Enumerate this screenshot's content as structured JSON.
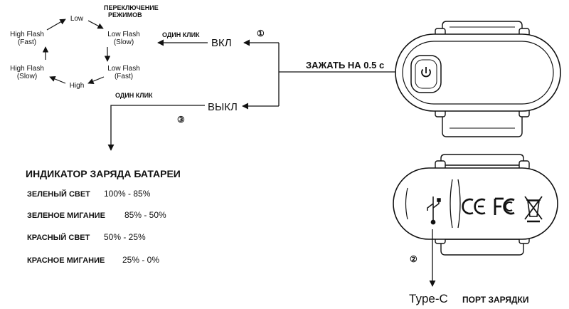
{
  "modes": {
    "title_line1": "ПЕРЕКЛЮЧЕНИЕ",
    "title_line2": "РЕЖИМОВ",
    "low": "Low",
    "low_flash_slow_1": "Low Flash",
    "low_flash_slow_2": "(Slow)",
    "low_flash_fast_1": "Low Flash",
    "low_flash_fast_2": "(Fast)",
    "high": "High",
    "high_flash_slow_1": "High Flash",
    "high_flash_slow_2": "(Slow)",
    "high_flash_fast_1": "High Flash",
    "high_flash_fast_2": "(Fast)"
  },
  "controls": {
    "on_label": "ВКЛ",
    "off_label": "ВЫКЛ",
    "one_click_on": "ОДИН КЛИК",
    "one_click_off": "ОДИН КЛИК",
    "hold_label": "ЗАЖАТЬ НА 0.5 с",
    "step_1": "①",
    "step_2": "②",
    "step_3": "③"
  },
  "battery": {
    "title": "ИНДИКАТОР ЗАРЯДА БАТАРЕИ",
    "rows": [
      {
        "label": "ЗЕЛЕНЫЙ СВЕТ",
        "value": "100% - 85%"
      },
      {
        "label": "ЗЕЛЕНОЕ МИГАНИЕ",
        "value": "85% - 50%"
      },
      {
        "label": "КРАСНЫЙ СВЕТ",
        "value": "50% - 25%"
      },
      {
        "label": "КРАСНОЕ МИГАНИЕ",
        "value": "25% - 0%"
      }
    ]
  },
  "port": {
    "type": "Type-C",
    "label": "ПОРТ ЗАРЯДКИ"
  },
  "icons": [
    "power-icon",
    "usb-icon",
    "ce-mark-icon",
    "fcc-mark-icon",
    "weee-bin-icon"
  ],
  "colors": {
    "ink": "#111111",
    "device_fill": "#ffffff"
  }
}
